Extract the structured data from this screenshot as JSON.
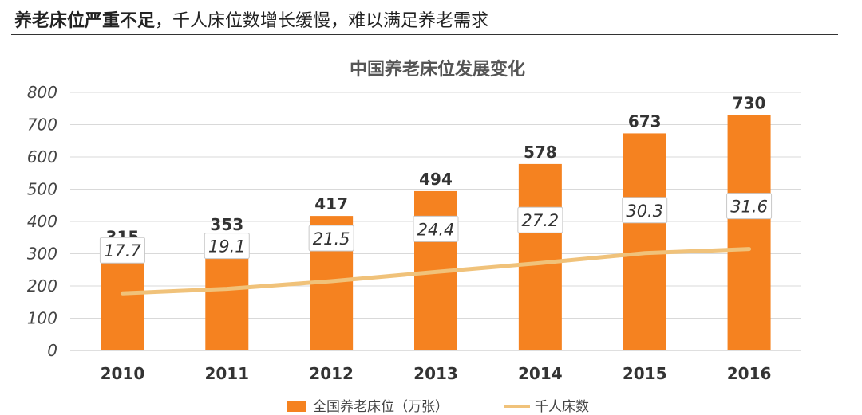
{
  "headline": {
    "bold": "养老床位严重不足",
    "rest": "，千人床位数增长缓慢，难以满足养老需求"
  },
  "colors": {
    "bar": "#F58220",
    "line": "#F0C27A",
    "grid": "#d9d9d9",
    "axis": "#bfbfbf"
  },
  "chart_data": {
    "type": "bar",
    "title": "中国养老床位发展变化",
    "categories": [
      "2010",
      "2011",
      "2012",
      "2013",
      "2014",
      "2015",
      "2016"
    ],
    "ylim": [
      0,
      800
    ],
    "yticks": [
      0,
      100,
      200,
      300,
      400,
      500,
      600,
      700,
      800
    ],
    "grid": true,
    "legend_position": "bottom",
    "series": [
      {
        "name": "全国养老床位（万张）",
        "kind": "bar",
        "values": [
          315,
          353,
          417,
          494,
          578,
          673,
          730
        ]
      },
      {
        "name": "千人床数",
        "kind": "line",
        "values": [
          17.7,
          19.1,
          21.5,
          24.4,
          27.2,
          30.3,
          31.6
        ]
      }
    ]
  }
}
